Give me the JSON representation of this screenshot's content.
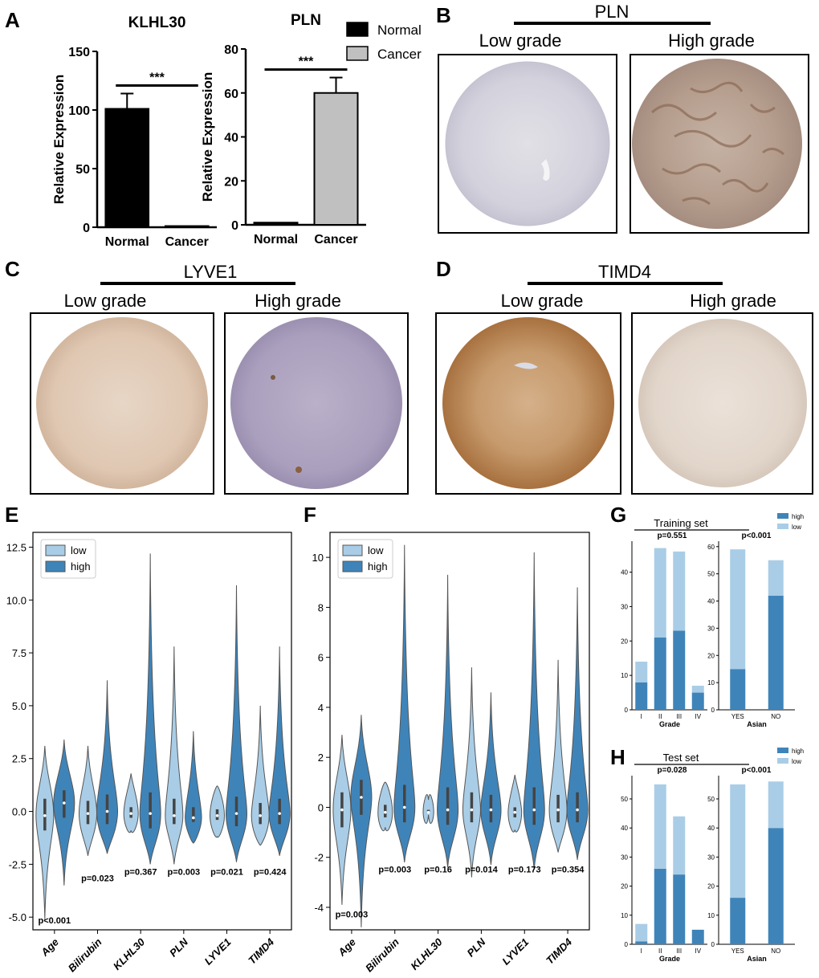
{
  "panel_labels": [
    "A",
    "B",
    "C",
    "D",
    "E",
    "F",
    "G",
    "H"
  ],
  "colors": {
    "normal": "#000000",
    "cancer": "#c0c0c0",
    "violin_low": "#a9cde6",
    "violin_high": "#3f84b9",
    "bar_high": "#3f84b9",
    "bar_low": "#a9cde6"
  },
  "ihc": {
    "b": {
      "gene": "PLN",
      "low": "Low grade",
      "high": "High grade"
    },
    "c": {
      "gene": "LYVE1",
      "low": "Low grade",
      "high": "High grade"
    },
    "d": {
      "gene": "TIMD4",
      "low": "Low grade",
      "high": "High grade"
    }
  },
  "chart_data": [
    {
      "id": "A1",
      "type": "bar",
      "title": "KLHL30",
      "categories": [
        "Normal",
        "Cancer"
      ],
      "values": [
        101,
        1
      ],
      "errors": [
        13,
        0
      ],
      "ylabel": "Relative Expression",
      "ylim": [
        0,
        150
      ],
      "yticks": [
        0,
        50,
        100,
        150
      ],
      "annotation": "***"
    },
    {
      "id": "A2",
      "type": "bar",
      "title": "PLN",
      "categories": [
        "Normal",
        "Cancer"
      ],
      "values": [
        1,
        60
      ],
      "errors": [
        0,
        7
      ],
      "ylabel": "Relative Expression",
      "ylim": [
        0,
        80
      ],
      "yticks": [
        0,
        20,
        40,
        60,
        80
      ],
      "annotation": "***",
      "legend": [
        "Normal",
        "Cancer"
      ]
    },
    {
      "id": "E",
      "type": "violin",
      "categories": [
        "Age",
        "Bilirubin",
        "KLHL30",
        "PLN",
        "LYVE1",
        "TIMD4"
      ],
      "legend": [
        "low",
        "high"
      ],
      "ylim": [
        -5.6,
        13.2
      ],
      "yticks": [
        -5.0,
        -2.5,
        0.0,
        2.5,
        5.0,
        7.5,
        10.0,
        12.5
      ],
      "pvalues": [
        {
          "text": "p<0.001",
          "y": -5.3
        },
        {
          "text": "p=0.023",
          "y": -3.3
        },
        {
          "text": "p=0.367",
          "y": -3.0
        },
        {
          "text": "p=0.003",
          "y": -3.0
        },
        {
          "text": "p=0.021",
          "y": -3.0
        },
        {
          "text": "p=0.424",
          "y": -3.0
        }
      ],
      "series": {
        "low": [
          {
            "min": -5.1,
            "max": 3.1,
            "median": -0.2,
            "q1": -0.9,
            "q3": 0.6
          },
          {
            "min": -2.1,
            "max": 3.1,
            "median": -0.1,
            "q1": -0.6,
            "q3": 0.5
          },
          {
            "min": -0.9,
            "max": 1.8,
            "median": -0.1,
            "q1": -0.3,
            "q3": 0.2
          },
          {
            "min": -2.5,
            "max": 7.8,
            "median": -0.2,
            "q1": -0.6,
            "q3": 0.6
          },
          {
            "min": -1.2,
            "max": 1.2,
            "median": -0.2,
            "q1": -0.4,
            "q3": 0.1
          },
          {
            "min": -1.6,
            "max": 5.0,
            "median": -0.2,
            "q1": -0.6,
            "q3": 0.4
          }
        ],
        "high": [
          {
            "min": -3.5,
            "max": 3.4,
            "median": 0.4,
            "q1": -0.3,
            "q3": 1.0
          },
          {
            "min": -2.0,
            "max": 6.2,
            "median": 0.0,
            "q1": -0.6,
            "q3": 0.8
          },
          {
            "min": -2.5,
            "max": 12.2,
            "median": -0.1,
            "q1": -0.8,
            "q3": 0.9
          },
          {
            "min": -1.5,
            "max": 3.8,
            "median": -0.3,
            "q1": -0.5,
            "q3": 0.2
          },
          {
            "min": -2.4,
            "max": 10.7,
            "median": -0.1,
            "q1": -0.7,
            "q3": 0.7
          },
          {
            "min": -2.1,
            "max": 7.8,
            "median": -0.1,
            "q1": -0.6,
            "q3": 0.6
          }
        ]
      }
    },
    {
      "id": "F",
      "type": "violin",
      "categories": [
        "Age",
        "Bilirubin",
        "KLHL30",
        "PLN",
        "LYVE1",
        "TIMD4"
      ],
      "legend": [
        "low",
        "high"
      ],
      "ylim": [
        -4.9,
        11.0
      ],
      "yticks": [
        -4,
        -2,
        0,
        2,
        4,
        6,
        8,
        10
      ],
      "pvalues": [
        {
          "text": "p=0.003",
          "y": -4.4
        },
        {
          "text": "p=0.003",
          "y": -2.6
        },
        {
          "text": "p=0.16",
          "y": -2.6
        },
        {
          "text": "p=0.014",
          "y": -2.6
        },
        {
          "text": "p=0.173",
          "y": -2.6
        },
        {
          "text": "p=0.354",
          "y": -2.6
        }
      ],
      "series": {
        "low": [
          {
            "min": -3.9,
            "max": 2.9,
            "median": -0.1,
            "q1": -0.8,
            "q3": 0.6
          },
          {
            "min": -0.8,
            "max": 1.0,
            "median": -0.2,
            "q1": -0.4,
            "q3": 0.1
          },
          {
            "min": -0.3,
            "max": 0.3,
            "median": -0.2,
            "q1": -0.2,
            "q3": -0.1
          },
          {
            "min": -2.8,
            "max": 5.6,
            "median": -0.1,
            "q1": -0.6,
            "q3": 0.6
          },
          {
            "min": -0.9,
            "max": 1.3,
            "median": -0.2,
            "q1": -0.4,
            "q3": 0.0
          },
          {
            "min": -1.8,
            "max": 5.9,
            "median": -0.1,
            "q1": -0.6,
            "q3": 0.5
          }
        ],
        "high": [
          {
            "min": -4.8,
            "max": 3.7,
            "median": 0.4,
            "q1": -0.3,
            "q3": 1.1
          },
          {
            "min": -2.2,
            "max": 10.5,
            "median": 0.0,
            "q1": -0.6,
            "q3": 0.9
          },
          {
            "min": -2.4,
            "max": 9.3,
            "median": -0.1,
            "q1": -0.7,
            "q3": 0.8
          },
          {
            "min": -2.3,
            "max": 4.6,
            "median": -0.1,
            "q1": -0.6,
            "q3": 0.5
          },
          {
            "min": -2.5,
            "max": 10.2,
            "median": -0.1,
            "q1": -0.7,
            "q3": 0.8
          },
          {
            "min": -2.1,
            "max": 8.8,
            "median": -0.1,
            "q1": -0.6,
            "q3": 0.6
          }
        ]
      }
    },
    {
      "id": "G",
      "type": "bar",
      "title": "Training set",
      "legend": [
        "high",
        "low"
      ],
      "left": {
        "categories": [
          "I",
          "II",
          "III",
          "IV"
        ],
        "high": [
          8,
          21,
          23,
          5
        ],
        "low": [
          6,
          26,
          23,
          2
        ],
        "xlabel": "Grade",
        "ylim": [
          0,
          49
        ],
        "yticks": [
          0,
          10,
          20,
          30,
          40
        ],
        "pvalue": "p=0.551"
      },
      "right": {
        "categories": [
          "YES",
          "NO"
        ],
        "high": [
          15,
          42
        ],
        "low": [
          44,
          13
        ],
        "xlabel": "Asian",
        "ylim": [
          0,
          62
        ],
        "yticks": [
          0,
          10,
          20,
          30,
          40,
          50,
          60
        ],
        "pvalue": "p<0.001"
      }
    },
    {
      "id": "H",
      "type": "bar",
      "title": "Test set",
      "legend": [
        "high",
        "low"
      ],
      "left": {
        "categories": [
          "I",
          "II",
          "III",
          "IV"
        ],
        "high": [
          1,
          26,
          24,
          5
        ],
        "low": [
          6,
          29,
          20,
          0
        ],
        "xlabel": "Grade",
        "ylim": [
          0,
          58
        ],
        "yticks": [
          0,
          10,
          20,
          30,
          40,
          50
        ],
        "pvalue": "p=0.028"
      },
      "right": {
        "categories": [
          "YES",
          "NO"
        ],
        "high": [
          16,
          40
        ],
        "low": [
          39,
          16
        ],
        "xlabel": "Asian",
        "ylim": [
          0,
          58
        ],
        "yticks": [
          0,
          10,
          20,
          30,
          40,
          50
        ],
        "pvalue": "p<0.001"
      }
    }
  ]
}
